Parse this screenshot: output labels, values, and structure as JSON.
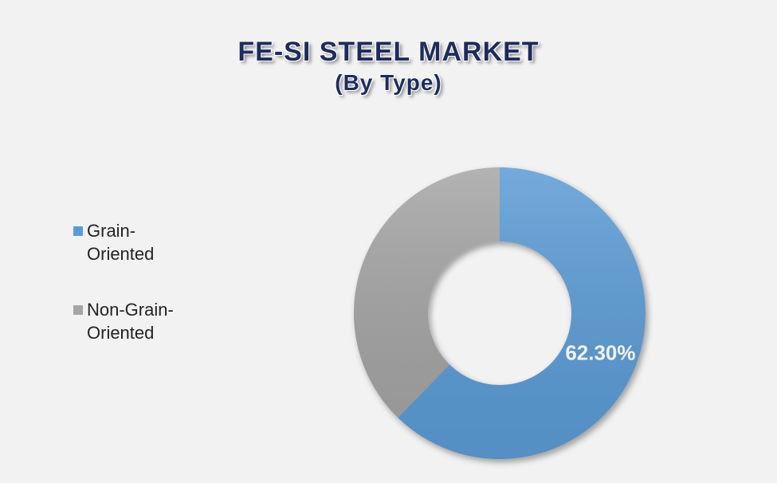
{
  "chart_data": {
    "type": "donut",
    "title": "FE-SI STEEL MARKET",
    "subtitle": "(By Type)",
    "categories": [
      "Grain-Oriented",
      "Non-Grain-Oriented"
    ],
    "values": [
      62.3,
      37.7
    ],
    "value_labels": [
      "62.30%",
      null
    ],
    "colors": [
      "#5b9bd5",
      "#a5a5a5"
    ],
    "legend": "left"
  }
}
